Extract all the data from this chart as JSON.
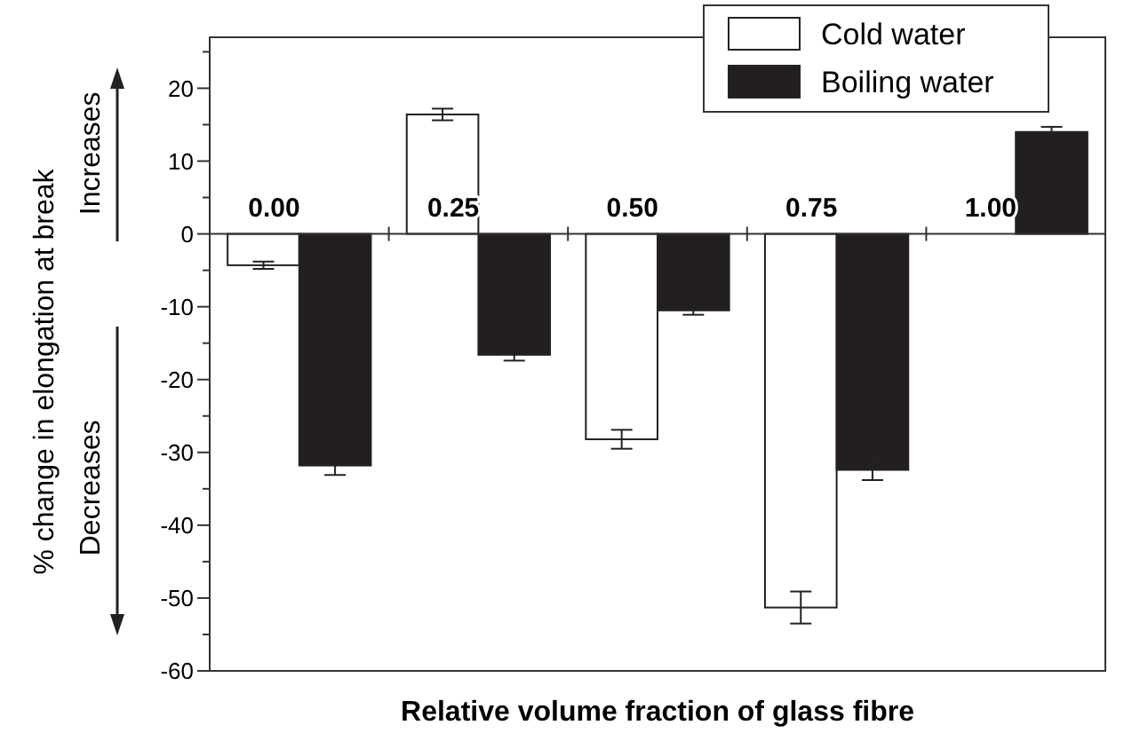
{
  "chart_data": {
    "type": "bar",
    "xlabel": "Relative volume fraction of glass fibre",
    "ylabel": "% change in elongation at break",
    "categories": [
      "0.00",
      "0.25",
      "0.50",
      "0.75",
      "1.00"
    ],
    "series": [
      {
        "name": "Cold water",
        "color": "#ffffff",
        "values": [
          -4.3,
          16.4,
          -28.2,
          -51.3,
          null
        ],
        "errors": [
          0.5,
          0.8,
          1.3,
          2.2,
          null
        ]
      },
      {
        "name": "Boiling water",
        "color": "#231f20",
        "values": [
          -31.8,
          -16.6,
          -10.5,
          -32.4,
          14.0
        ],
        "errors": [
          1.3,
          0.8,
          0.6,
          1.4,
          0.7
        ]
      }
    ],
    "ylim": [
      -60,
      27
    ],
    "yticks": [
      -60,
      {
        "value": -55,
        "label": null
      },
      -50,
      {
        "value": -45,
        "label": null
      },
      -40,
      {
        "value": -35,
        "label": null
      },
      -30,
      {
        "value": -25,
        "label": null
      },
      -20,
      {
        "value": -15,
        "label": null
      },
      -10,
      {
        "value": -5,
        "label": null
      },
      0,
      {
        "value": 5,
        "label": null
      },
      10,
      {
        "value": 15,
        "label": null
      },
      20,
      {
        "value": 25,
        "label": null
      }
    ],
    "annotations": [
      "Increases",
      "Decreases"
    ],
    "legend": "top right",
    "grid": false
  }
}
